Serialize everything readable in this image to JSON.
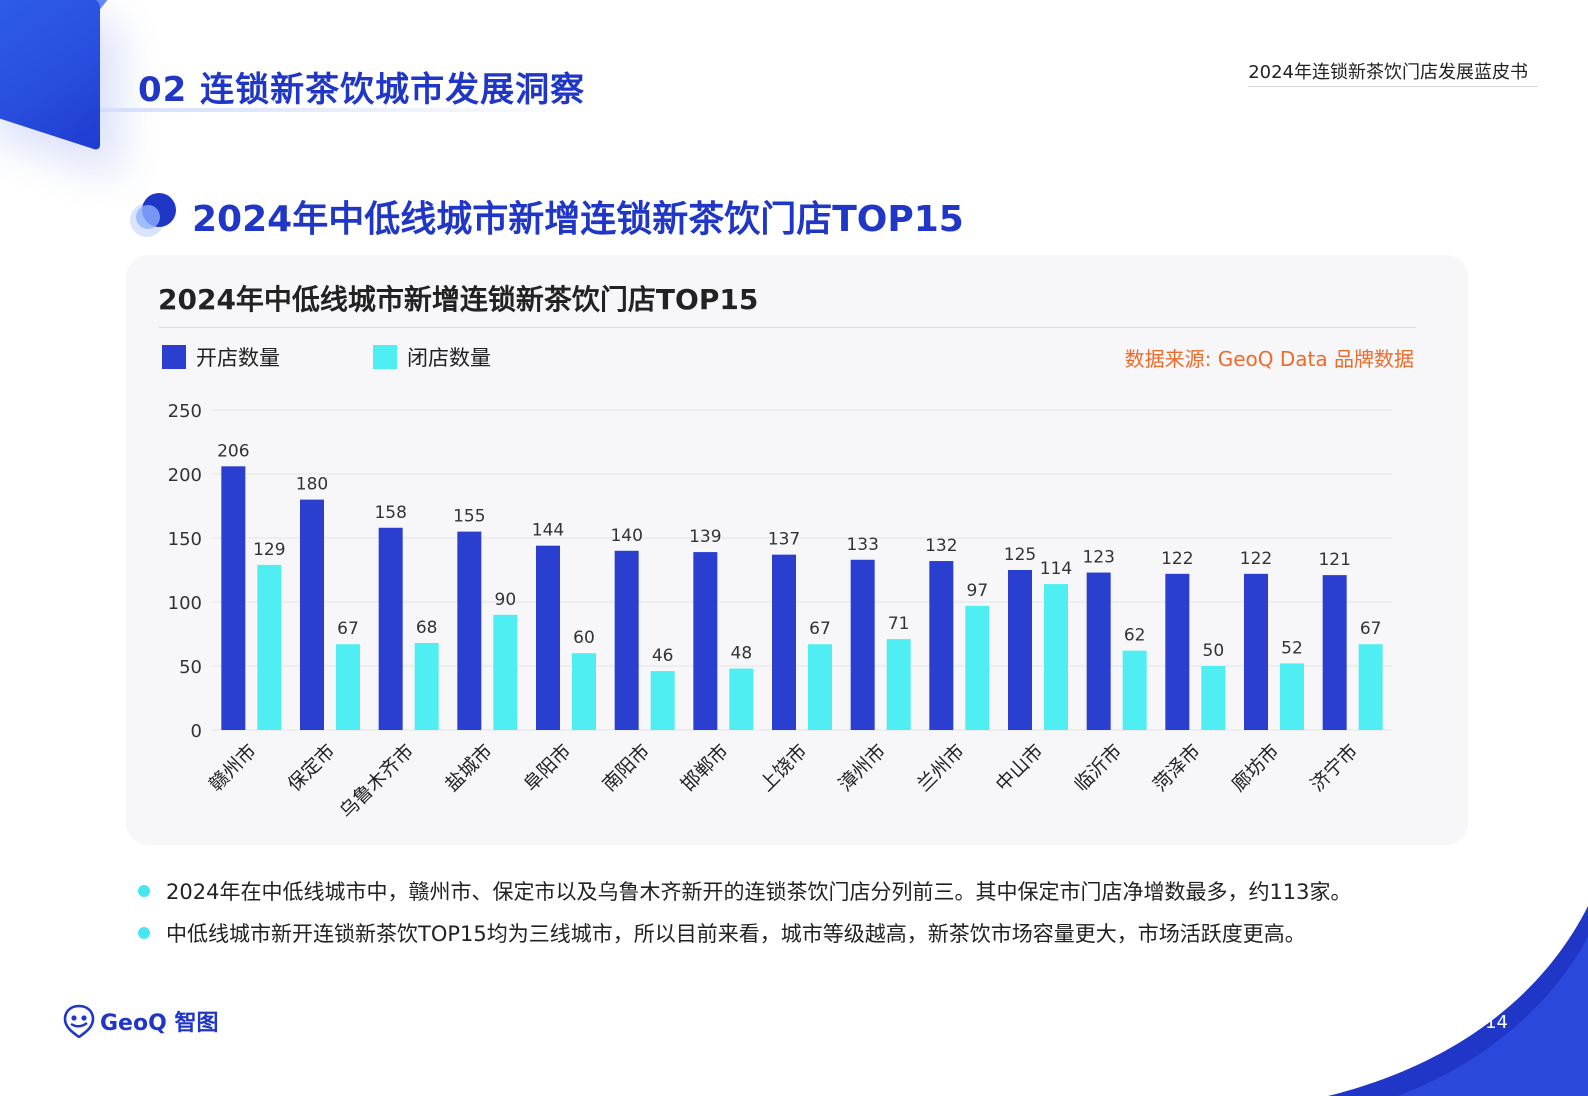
{
  "header": {
    "section_title": "02 连锁新茶饮城市发展洞察",
    "report_name": "2024年连锁新茶饮门店发展蓝皮书"
  },
  "page_heading": "2024年中低线城市新增连锁新茶饮门店TOP15",
  "chart_data": {
    "type": "bar",
    "title": "2024年中低线城市新增连锁新茶饮门店TOP15",
    "source": "数据来源: GeoQ Data 品牌数据",
    "categories": [
      "赣州市",
      "保定市",
      "乌鲁木齐市",
      "盐城市",
      "阜阳市",
      "南阳市",
      "邯郸市",
      "上饶市",
      "漳州市",
      "兰州市",
      "中山市",
      "临沂市",
      "菏泽市",
      "廊坊市",
      "济宁市"
    ],
    "series": [
      {
        "name": "开店数量",
        "color": "#2a3fcf",
        "values": [
          206,
          180,
          158,
          155,
          144,
          140,
          139,
          137,
          133,
          132,
          125,
          123,
          122,
          122,
          121
        ]
      },
      {
        "name": "闭店数量",
        "color": "#4eeef2",
        "values": [
          129,
          67,
          68,
          90,
          60,
          46,
          48,
          67,
          71,
          97,
          114,
          62,
          50,
          52,
          67
        ]
      }
    ],
    "ylim": [
      0,
      250
    ],
    "yticks": [
      0,
      50,
      100,
      150,
      200,
      250
    ],
    "xlabel": "",
    "ylabel": "",
    "grid": true,
    "legend_position": "top-left"
  },
  "notes": [
    "2024年在中低线城市中，赣州市、保定市以及乌鲁木齐新开的连锁茶饮门店分列前三。其中保定市门店净增数最多，约113家。",
    "中低线城市新开连锁新茶饮TOP15均为三线城市，所以目前来看，城市等级越高，新茶饮市场容量更大，市场活跃度更高。"
  ],
  "footer": {
    "logo_text": "GeoQ 智图",
    "page_number": "14"
  },
  "colors": {
    "brand_blue": "#1f36c7",
    "accent_cyan": "#47e6f2",
    "source_orange": "#f06a2a"
  },
  "icons": [
    "heading-bubble-icon",
    "geoq-logo-icon"
  ]
}
